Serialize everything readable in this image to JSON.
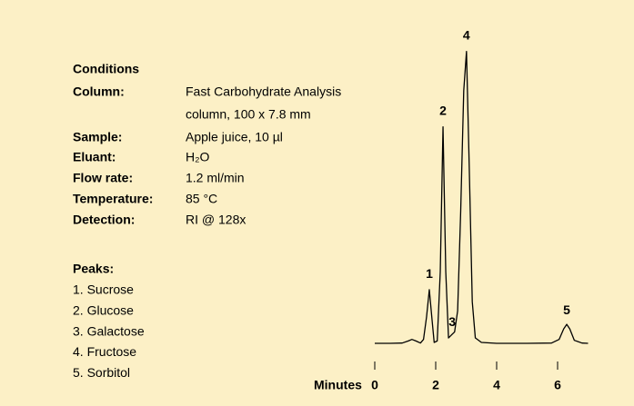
{
  "conditions": {
    "title": "Conditions",
    "rows": [
      {
        "label": "Column:",
        "value": [
          "Fast Carbohydrate Analysis",
          "column, 100 x 7.8 mm"
        ]
      },
      {
        "label": "Sample:",
        "value": [
          "Apple juice, 10 µl"
        ]
      },
      {
        "label": "Eluant:",
        "value": [
          "H₂O"
        ]
      },
      {
        "label": "Flow rate:",
        "value": [
          "1.2 ml/min"
        ]
      },
      {
        "label": "Temperature:",
        "value": [
          "85 °C"
        ]
      },
      {
        "label": "Detection:",
        "value": [
          "RI @ 128x"
        ]
      }
    ]
  },
  "peaks": {
    "title": "Peaks:",
    "items": [
      "1. Sucrose",
      "2. Glucose",
      "3. Galactose",
      "4. Fructose",
      "5. Sorbitol"
    ]
  },
  "chart_data": {
    "type": "line",
    "xlabel": "Minutes",
    "color": "#000000",
    "xlim": [
      0,
      7
    ],
    "ylim": [
      0,
      100
    ],
    "xticks": [
      0,
      2,
      4,
      6
    ],
    "x": [
      0,
      0.5,
      0.9,
      1.1,
      1.22,
      1.35,
      1.5,
      1.6,
      1.7,
      1.79,
      1.88,
      1.95,
      2.05,
      2.15,
      2.24,
      2.33,
      2.42,
      2.52,
      2.62,
      2.72,
      2.82,
      2.92,
      3.01,
      3.1,
      3.2,
      3.3,
      3.5,
      4,
      5,
      5.8,
      6.05,
      6.2,
      6.3,
      6.4,
      6.55,
      6.8,
      7
    ],
    "values": [
      1.2,
      1.2,
      1.3,
      2.0,
      2.5,
      2.0,
      1.3,
      2.5,
      10,
      19,
      9,
      1.5,
      2,
      25,
      73,
      25,
      3,
      4,
      5,
      12,
      45,
      85,
      98,
      60,
      15,
      3,
      1.5,
      1.2,
      1.2,
      1.3,
      2.5,
      6,
      7.5,
      6,
      2.2,
      1.3,
      1.2
    ],
    "annotations": [
      {
        "text": "1",
        "x": 1.79,
        "y": 24
      },
      {
        "text": "2",
        "x": 2.24,
        "y": 78
      },
      {
        "text": "3",
        "x": 2.54,
        "y": 8
      },
      {
        "text": "4",
        "x": 3.01,
        "y": 103
      },
      {
        "text": "5",
        "x": 6.3,
        "y": 12
      }
    ]
  }
}
